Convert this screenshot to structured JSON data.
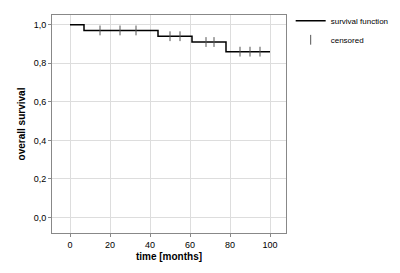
{
  "chart_data": {
    "type": "line",
    "x_label": "time [months]",
    "y_label": "overall survival",
    "xlim": [
      -9,
      108
    ],
    "ylim": [
      -0.08,
      1.05
    ],
    "xticks": [
      0,
      20,
      40,
      60,
      80,
      100
    ],
    "yticks": [
      {
        "value": 0,
        "label": "0,0"
      },
      {
        "value": 0.2,
        "label": "0,2"
      },
      {
        "value": 0.4,
        "label": "0,4"
      },
      {
        "value": 0.6,
        "label": "0,6"
      },
      {
        "value": 0.8,
        "label": "0,8"
      },
      {
        "value": 1,
        "label": "1,0"
      }
    ],
    "grid": true,
    "legend": "upper right",
    "series": [
      {
        "name": "survival function",
        "color": "#000000",
        "line_style": "step",
        "x": [
          0,
          7,
          44,
          61,
          78,
          100
        ],
        "values": [
          1.0,
          0.97,
          0.94,
          0.91,
          0.86,
          0.86
        ]
      },
      {
        "name": "censored",
        "type": "scatter",
        "marker": "tick",
        "color": "#555555",
        "x": [
          15,
          25,
          33,
          50,
          55,
          68,
          72,
          85,
          90,
          95
        ],
        "values": [
          0.97,
          0.97,
          0.97,
          0.94,
          0.94,
          0.91,
          0.91,
          0.86,
          0.86,
          0.86
        ]
      }
    ]
  }
}
